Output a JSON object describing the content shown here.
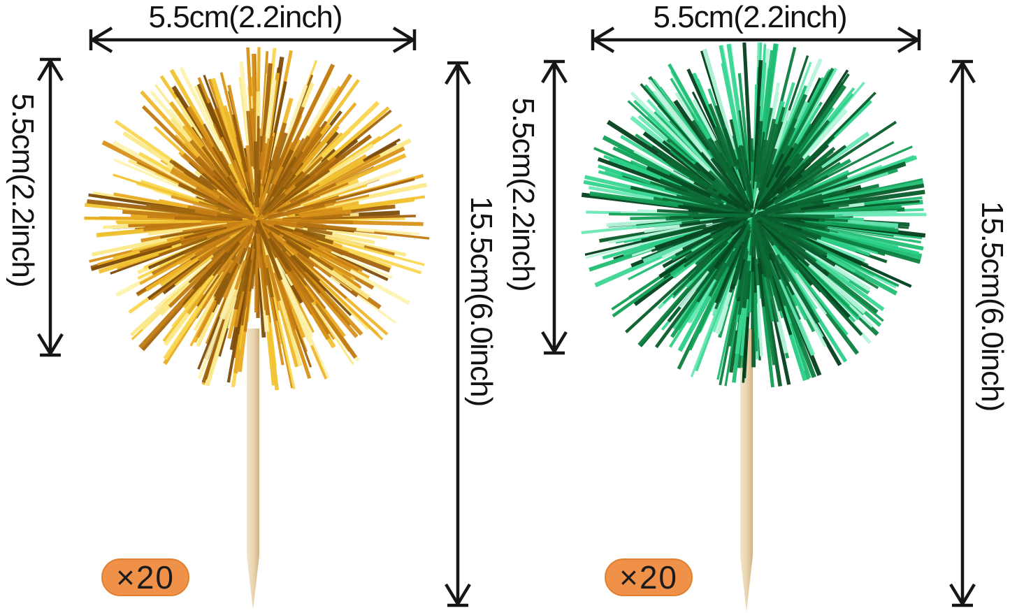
{
  "page": {
    "background": "#ffffff"
  },
  "arrow_color": "#161616",
  "badge": {
    "fill": "#ef9148",
    "border": "#e2802f",
    "text_color": "#1c1c1c"
  },
  "products": [
    {
      "name": "gold tinsel pom cupcake topper",
      "width_label": "5.5cm(2.2inch)",
      "pom_height_label": "5.5cm(2.2inch)",
      "total_height_label": "15.5cm(6.0inch)",
      "quantity_label": "×20",
      "pom_palette": [
        "#fdf3b0",
        "#fce98a",
        "#f9d84f",
        "#f2c432",
        "#e8ab22",
        "#d8921a",
        "#c17c14",
        "#a3650f",
        "#7d4c0a",
        "#f0b62c"
      ],
      "pom_core_palette": [
        "#b26f10",
        "#8f5a0c",
        "#c87f15",
        "#9c6410",
        "#d8921a"
      ],
      "stick_palette": [
        "#f3e6cb",
        "#e8d3ae",
        "#d0b284"
      ]
    },
    {
      "name": "green tinsel pom cupcake topper",
      "width_label": "5.5cm(2.2inch)",
      "pom_height_label": "5.5cm(2.2inch)",
      "total_height_label": "15.5cm(6.0inch)",
      "quantity_label": "×20",
      "pom_palette": [
        "#b9f5dd",
        "#6ae8b6",
        "#3cd693",
        "#22bd74",
        "#13a057",
        "#0d7f40",
        "#085c2b",
        "#04401d",
        "#2bcf87"
      ],
      "pom_core_palette": [
        "#0a5e2e",
        "#074722",
        "#0d7038",
        "#0c6a33"
      ],
      "stick_palette": [
        "#f3e6cb",
        "#e8d3ae",
        "#d0b284"
      ]
    }
  ]
}
